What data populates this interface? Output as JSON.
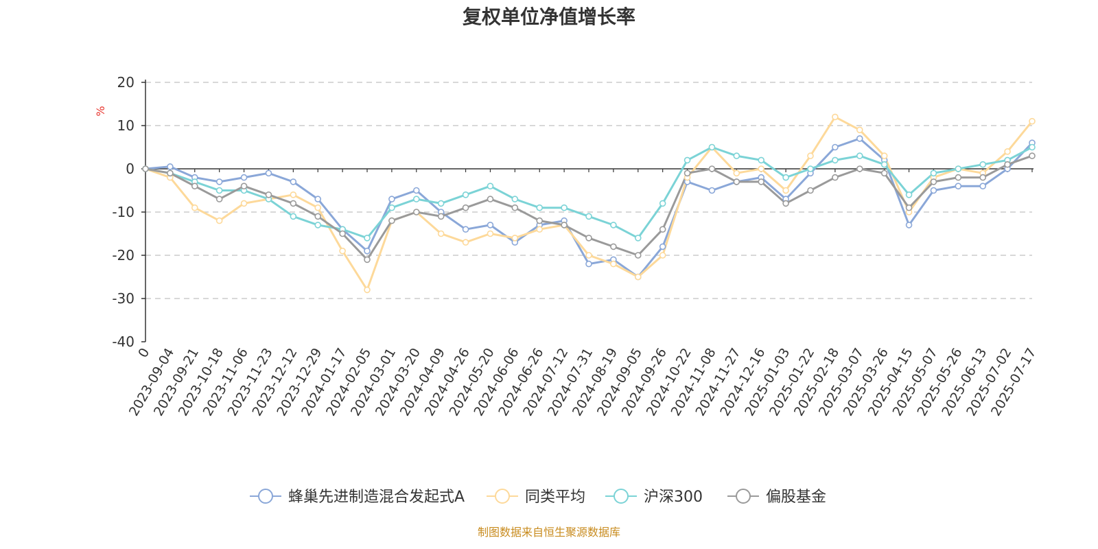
{
  "chart_data": {
    "type": "line",
    "title": "复权单位净值增长率",
    "ylabel": "%",
    "ylim": [
      -40,
      20
    ],
    "yticks": [
      20,
      10,
      0,
      -10,
      -20,
      -30,
      -40
    ],
    "grid": true,
    "legend_position": "bottom",
    "source": "制图数据来自恒生聚源数据库",
    "categories": [
      "0",
      "2023-09-04",
      "2023-09-21",
      "2023-10-18",
      "2023-11-06",
      "2023-11-23",
      "2023-12-12",
      "2023-12-29",
      "2024-01-17",
      "2024-02-05",
      "2024-03-01",
      "2024-03-20",
      "2024-04-09",
      "2024-04-26",
      "2024-05-20",
      "2024-06-06",
      "2024-06-26",
      "2024-07-12",
      "2024-07-31",
      "2024-08-19",
      "2024-09-05",
      "2024-09-26",
      "2024-10-22",
      "2024-11-08",
      "2024-11-27",
      "2024-12-16",
      "2025-01-03",
      "2025-01-22",
      "2025-02-18",
      "2025-03-07",
      "2025-03-26",
      "2025-04-15",
      "2025-05-07",
      "2025-05-26",
      "2025-06-13",
      "2025-07-02",
      "2025-07-17"
    ],
    "series": [
      {
        "name": "蜂巢先进制造混合发起式A",
        "color": "#8aa7d8",
        "values": [
          0,
          0.5,
          -2,
          -3,
          -2,
          -1,
          -3,
          -7,
          -14,
          -19,
          -7,
          -5,
          -10,
          -14,
          -13,
          -17,
          -13,
          -12,
          -22,
          -21,
          -25,
          -18,
          -3,
          -5,
          -3,
          -2,
          -7,
          -1,
          5,
          7,
          2,
          -13,
          -5,
          -4,
          -4,
          0,
          6
        ]
      },
      {
        "name": "同类平均",
        "color": "#fdd99a",
        "values": [
          0,
          -2,
          -9,
          -12,
          -8,
          -7,
          -6,
          -9,
          -19,
          -28,
          -12,
          -10,
          -15,
          -17,
          -15,
          -16,
          -14,
          -13,
          -20,
          -22,
          -25,
          -20,
          -2,
          5,
          -1,
          0,
          -5,
          3,
          12,
          9,
          3,
          -10,
          -2,
          0,
          -1,
          4,
          11
        ]
      },
      {
        "name": "沪深300",
        "color": "#7bd3d6",
        "values": [
          0,
          -1,
          -3,
          -5,
          -5,
          -7,
          -11,
          -13,
          -14,
          -16,
          -9,
          -7,
          -8,
          -6,
          -4,
          -7,
          -9,
          -9,
          -11,
          -13,
          -16,
          -8,
          2,
          5,
          3,
          2,
          -2,
          0,
          2,
          3,
          1,
          -6,
          -1,
          0,
          1,
          2,
          5
        ]
      },
      {
        "name": "偏股基金",
        "color": "#9a9a9a",
        "values": [
          0,
          -1,
          -4,
          -7,
          -4,
          -6,
          -8,
          -11,
          -15,
          -21,
          -12,
          -10,
          -11,
          -9,
          -7,
          -9,
          -12,
          -13,
          -16,
          -18,
          -20,
          -14,
          -1,
          0,
          -3,
          -3,
          -8,
          -5,
          -2,
          0,
          -1,
          -9,
          -3,
          -2,
          -2,
          1,
          3
        ]
      }
    ]
  }
}
